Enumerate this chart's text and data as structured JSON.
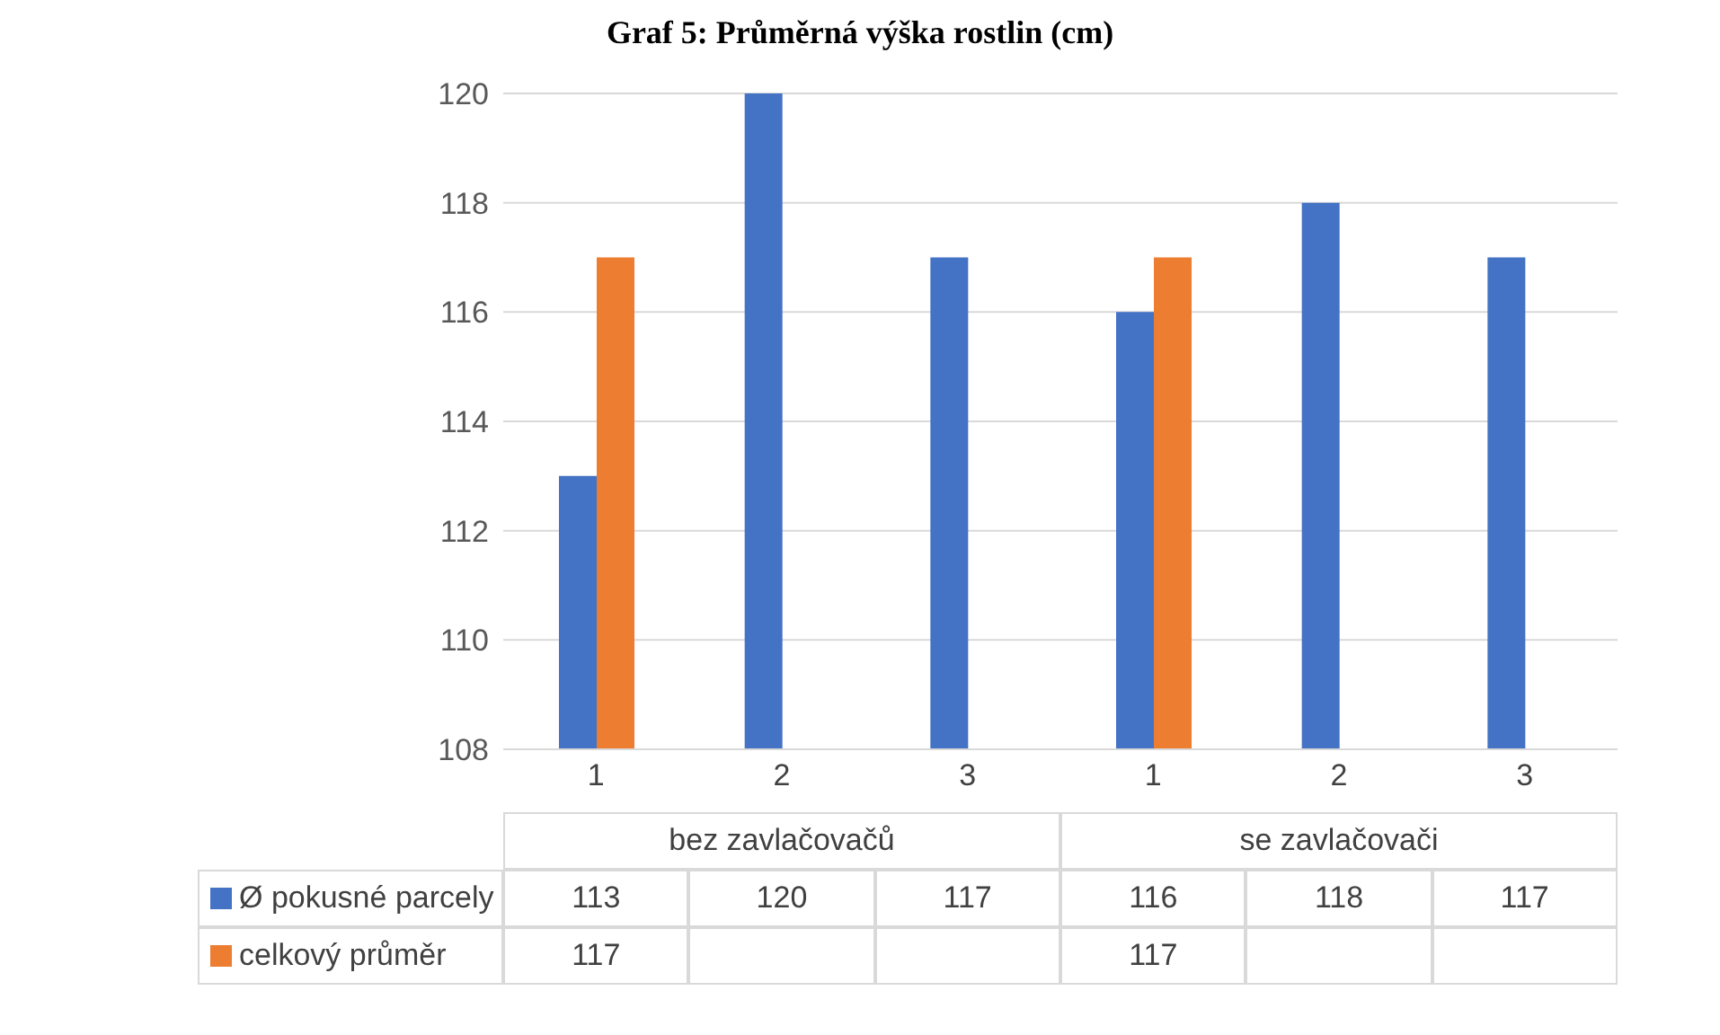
{
  "chart_data": {
    "type": "bar",
    "title": "Graf 5: Průměrná výška rostlin (cm)",
    "categories": [
      "1",
      "2",
      "3",
      "1",
      "2",
      "3"
    ],
    "annotations": [
      "bez zavlačovačů",
      "se zavlačovači"
    ],
    "series": [
      {
        "name": "Ø pokusné parcely",
        "color": "#4472c4",
        "values": [
          113,
          120,
          117,
          116,
          118,
          117
        ]
      },
      {
        "name": "celkový průměr",
        "color": "#ed7d31",
        "values": [
          117,
          null,
          null,
          117,
          null,
          null
        ]
      }
    ],
    "ylim": [
      108,
      120
    ],
    "yticks": [
      108,
      110,
      112,
      114,
      116,
      118,
      120
    ],
    "grid": "y",
    "legend": "bottom",
    "data_labels": true
  }
}
